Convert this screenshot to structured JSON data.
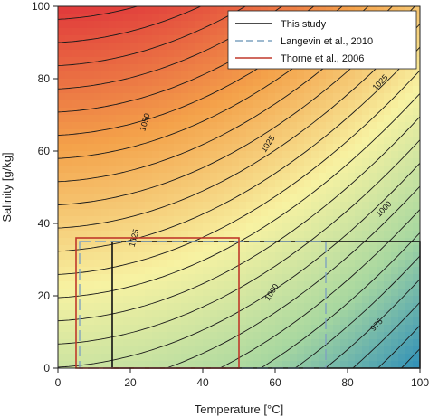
{
  "chart_data": {
    "type": "contour",
    "xlabel": "Temperature [°C]",
    "ylabel": "Salinity [g/kg]",
    "xlim": [
      0,
      100
    ],
    "ylim": [
      0,
      100
    ],
    "x_ticks": [
      "0",
      "20",
      "40",
      "60",
      "80",
      "100"
    ],
    "y_ticks": [
      "0",
      "20",
      "40",
      "60",
      "80",
      "100"
    ],
    "contour_labels": [
      {
        "text": "1050",
        "t": 24,
        "s": 68
      },
      {
        "text": "1025",
        "t": 58,
        "s": 62
      },
      {
        "text": "1025",
        "t": 89,
        "s": 79
      },
      {
        "text": "1025",
        "t": 21,
        "s": 36
      },
      {
        "text": "1000",
        "t": 59,
        "s": 21
      },
      {
        "text": "1000",
        "t": 90,
        "s": 44
      },
      {
        "text": "975",
        "t": 88,
        "s": 12
      }
    ],
    "legend": {
      "position": "top-right",
      "entries": [
        {
          "label": "This study",
          "color": "#111111",
          "dash": "solid"
        },
        {
          "label": "Langevin et al., 2010",
          "color": "#7fa3c0",
          "dash": "dashed"
        },
        {
          "label": "Thorne et al., 2006",
          "color": "#c0392b",
          "dash": "solid"
        }
      ]
    },
    "regions": [
      {
        "name": "This study",
        "t_range": [
          15,
          100
        ],
        "s_range": [
          0,
          35
        ],
        "color": "#111111",
        "dash": "solid"
      },
      {
        "name": "Langevin et al., 2010",
        "t_range": [
          6,
          74
        ],
        "s_range": [
          0,
          35
        ],
        "color": "#7fa3c0",
        "dash": "dashed"
      },
      {
        "name": "Thorne et al., 2006",
        "t_range": [
          5,
          50
        ],
        "s_range": [
          0,
          36
        ],
        "color": "#c0392b",
        "dash": "solid"
      }
    ],
    "colors": [
      "#e0393b",
      "#f4a24a",
      "#f7f2a2",
      "#a9d8a0",
      "#2e8fb8"
    ]
  }
}
